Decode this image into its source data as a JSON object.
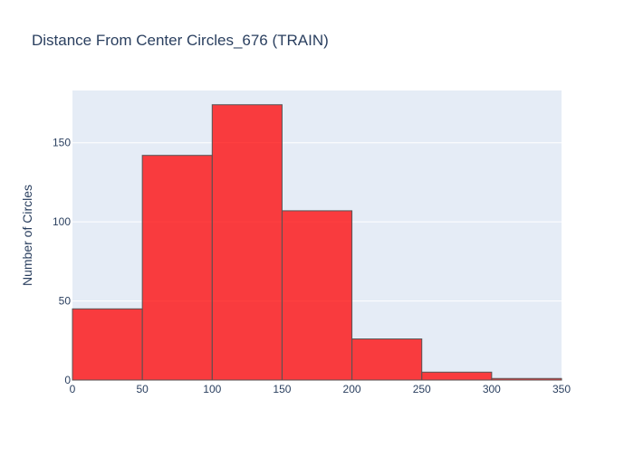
{
  "chart_data": {
    "type": "bar",
    "title": "Distance From Center Circles_676 (TRAIN)",
    "xlabel": "",
    "ylabel": "Number of Circles",
    "bins": [
      {
        "x0": 0,
        "x1": 50,
        "count": 45
      },
      {
        "x0": 50,
        "x1": 100,
        "count": 142
      },
      {
        "x0": 100,
        "x1": 150,
        "count": 174
      },
      {
        "x0": 150,
        "x1": 200,
        "count": 107
      },
      {
        "x0": 200,
        "x1": 250,
        "count": 26
      },
      {
        "x0": 250,
        "x1": 300,
        "count": 5
      },
      {
        "x0": 300,
        "x1": 350,
        "count": 1
      }
    ],
    "xlim": [
      0,
      350
    ],
    "ylim": [
      0,
      183
    ],
    "x_ticks": [
      "0",
      "50",
      "100",
      "150",
      "200",
      "250",
      "300",
      "350"
    ],
    "y_ticks": [
      "0",
      "50",
      "100",
      "150"
    ],
    "x_tick_values": [
      0,
      50,
      100,
      150,
      200,
      250,
      300,
      350
    ],
    "y_tick_values": [
      0,
      50,
      100,
      150
    ],
    "grid": true,
    "colors": {
      "bar_fill": "#ff0000",
      "bar_stroke": "#555555",
      "plot_bg": "#e5ecf6",
      "grid": "#ffffff",
      "text": "#2a3f5f"
    }
  }
}
